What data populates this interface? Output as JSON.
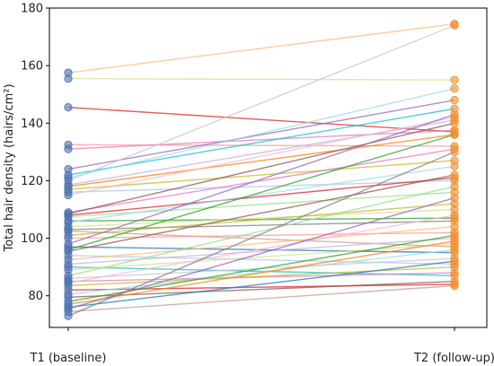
{
  "chart_data": {
    "type": "line",
    "categories": [
      "T1 (baseline)",
      "T2 (follow-up)"
    ],
    "ylabel": "Total hair density (hairs/cm²)",
    "xlabel": "",
    "ylim": [
      69,
      180
    ],
    "yticks": [
      80,
      100,
      120,
      140,
      160,
      180
    ],
    "grid": false,
    "legend": "none",
    "marker_colors": {
      "t1": "#4c72b0",
      "t2": "#f28e2b"
    },
    "pairs": [
      {
        "t1": 157.5,
        "t2": 174.5,
        "color": "#ffbb78"
      },
      {
        "t1": 155.5,
        "t2": 155.0,
        "color": "#dbdb8d"
      },
      {
        "t1": 145.5,
        "t2": 137.0,
        "color": "#d62728"
      },
      {
        "t1": 132.5,
        "t2": 132.0,
        "color": "#ff9896"
      },
      {
        "t1": 131.0,
        "t2": 137.5,
        "color": "#e377c2"
      },
      {
        "t1": 124.0,
        "t2": 148.0,
        "color": "#9467bd"
      },
      {
        "t1": 122.0,
        "t2": 145.0,
        "color": "#17becf"
      },
      {
        "t1": 121.0,
        "t2": 152.0,
        "color": "#9edae5"
      },
      {
        "t1": 120.0,
        "t2": 174.0,
        "color": "#c7c7c7"
      },
      {
        "t1": 118.5,
        "t2": 141.0,
        "color": "#c5b0d5"
      },
      {
        "t1": 118.0,
        "t2": 136.0,
        "color": "#ff7f0e"
      },
      {
        "t1": 117.0,
        "t2": 127.0,
        "color": "#bcbd22"
      },
      {
        "t1": 116.0,
        "t2": 120.0,
        "color": "#aec7e8"
      },
      {
        "t1": 115.0,
        "t2": 142.0,
        "color": "#f7b6d2"
      },
      {
        "t1": 109.0,
        "t2": 131.0,
        "color": "#e377c2"
      },
      {
        "t1": 108.5,
        "t2": 140.0,
        "color": "#8c564b"
      },
      {
        "t1": 108.0,
        "t2": 121.0,
        "color": "#d62728"
      },
      {
        "t1": 107.5,
        "t2": 116.0,
        "color": "#98df8a"
      },
      {
        "t1": 106.0,
        "t2": 107.0,
        "color": "#2ca02c"
      },
      {
        "t1": 105.5,
        "t2": 125.0,
        "color": "#9edae5"
      },
      {
        "t1": 104.0,
        "t2": 110.0,
        "color": "#dbdb8d"
      },
      {
        "t1": 103.0,
        "t2": 106.0,
        "color": "#7f7f7f"
      },
      {
        "t1": 102.5,
        "t2": 97.0,
        "color": "#c49c94"
      },
      {
        "t1": 101.0,
        "t2": 112.0,
        "color": "#bcbd22"
      },
      {
        "t1": 100.0,
        "t2": 102.0,
        "color": "#ff9896"
      },
      {
        "t1": 98.0,
        "t2": 143.0,
        "color": "#9467bd"
      },
      {
        "t1": 97.0,
        "t2": 95.0,
        "color": "#1f77b4"
      },
      {
        "t1": 96.0,
        "t2": 136.0,
        "color": "#2ca02c"
      },
      {
        "t1": 95.5,
        "t2": 122.0,
        "color": "#8c564b"
      },
      {
        "t1": 94.0,
        "t2": 91.0,
        "color": "#aec7e8"
      },
      {
        "t1": 92.5,
        "t2": 104.0,
        "color": "#ffbb78"
      },
      {
        "t1": 91.0,
        "t2": 100.0,
        "color": "#c5b0d5"
      },
      {
        "t1": 90.0,
        "t2": 87.0,
        "color": "#17becf"
      },
      {
        "t1": 89.0,
        "t2": 98.0,
        "color": "#dbdb8d"
      },
      {
        "t1": 87.0,
        "t2": 118.0,
        "color": "#98df8a"
      },
      {
        "t1": 86.0,
        "t2": 93.0,
        "color": "#c7c7c7"
      },
      {
        "t1": 85.0,
        "t2": 88.0,
        "color": "#e377c2"
      },
      {
        "t1": 84.5,
        "t2": 108.0,
        "color": "#f7b6d2"
      },
      {
        "t1": 83.5,
        "t2": 90.0,
        "color": "#bcbd22"
      },
      {
        "t1": 82.0,
        "t2": 84.0,
        "color": "#d62728"
      },
      {
        "t1": 80.5,
        "t2": 96.0,
        "color": "#9edae5"
      },
      {
        "t1": 79.5,
        "t2": 85.0,
        "color": "#8c564b"
      },
      {
        "t1": 78.0,
        "t2": 101.0,
        "color": "#2ca02c"
      },
      {
        "t1": 77.0,
        "t2": 99.0,
        "color": "#ff7f0e"
      },
      {
        "t1": 76.0,
        "t2": 92.0,
        "color": "#1f77b4"
      },
      {
        "t1": 75.5,
        "t2": 114.0,
        "color": "#9467bd"
      },
      {
        "t1": 74.5,
        "t2": 83.5,
        "color": "#c49c94"
      },
      {
        "t1": 73.0,
        "t2": 130.0,
        "color": "#7f7f7f"
      }
    ]
  }
}
